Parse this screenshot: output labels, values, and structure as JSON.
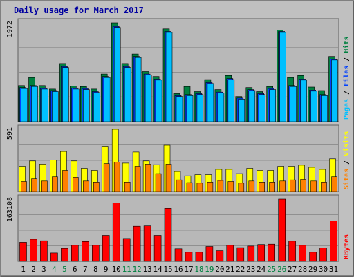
{
  "title": "Daily usage for March 2017",
  "colors": {
    "page_bg": "#c0c0c0",
    "panel_bg": "#b8b8b8",
    "title_text": "#0000a0",
    "pages": "#00c0ff",
    "hits": "#008040",
    "files": "#0040ff",
    "visits": "#ffff00",
    "sites": "#ff8000",
    "kbytes": "#ff0000",
    "weekend_day": "#008040",
    "weekday_day": "#000000"
  },
  "chart_data": [
    {
      "type": "bar",
      "panel": "top",
      "max_label": "1972",
      "ylim": [
        0,
        1972
      ],
      "legend": [
        {
          "text": "Pages",
          "color": "#00c0ff"
        },
        {
          "text": "Files",
          "color": "#0040ff"
        },
        {
          "text": "Hits",
          "color": "#008040"
        }
      ],
      "categories": [
        "1",
        "2",
        "3",
        "4",
        "5",
        "6",
        "7",
        "8",
        "9",
        "10",
        "11",
        "12",
        "13",
        "14",
        "15",
        "16",
        "17",
        "18",
        "19",
        "20",
        "21",
        "22",
        "23",
        "24",
        "25",
        "26",
        "27",
        "28",
        "29",
        "30",
        "31"
      ],
      "series": [
        {
          "name": "Hits",
          "color": "#008040",
          "values": [
            720,
            880,
            720,
            650,
            1160,
            710,
            700,
            650,
            950,
            1972,
            1160,
            1350,
            1000,
            900,
            1850,
            560,
            700,
            600,
            840,
            640,
            920,
            500,
            680,
            600,
            700,
            1830,
            880,
            920,
            690,
            620,
            1300
          ]
        },
        {
          "name": "Files",
          "color": "#0040ff",
          "values": [
            680,
            720,
            670,
            620,
            1100,
            670,
            660,
            600,
            900,
            1900,
            1100,
            1300,
            950,
            850,
            1800,
            520,
            540,
            560,
            780,
            590,
            860,
            470,
            640,
            560,
            660,
            1800,
            720,
            850,
            630,
            540,
            1250
          ]
        },
        {
          "name": "Pages",
          "color": "#00c0ff",
          "values": [
            660,
            700,
            650,
            600,
            1080,
            650,
            640,
            580,
            880,
            1880,
            1080,
            1280,
            930,
            830,
            1780,
            500,
            520,
            540,
            760,
            570,
            840,
            450,
            620,
            540,
            640,
            1780,
            700,
            830,
            610,
            520,
            1230
          ]
        }
      ]
    },
    {
      "type": "bar",
      "panel": "middle",
      "max_label": "591",
      "ylim": [
        0,
        591
      ],
      "legend": [
        {
          "text": "Sites",
          "color": "#ff8000"
        },
        {
          "text": "Visits",
          "color": "#ffff00"
        }
      ],
      "categories": [
        "1",
        "2",
        "3",
        "4",
        "5",
        "6",
        "7",
        "8",
        "9",
        "10",
        "11",
        "12",
        "13",
        "14",
        "15",
        "16",
        "17",
        "18",
        "19",
        "20",
        "21",
        "22",
        "23",
        "24",
        "25",
        "26",
        "27",
        "28",
        "29",
        "30",
        "31"
      ],
      "series": [
        {
          "name": "Visits",
          "color": "#ffff00",
          "values": [
            240,
            290,
            260,
            300,
            380,
            290,
            220,
            200,
            430,
            591,
            270,
            375,
            290,
            255,
            440,
            190,
            150,
            160,
            160,
            210,
            210,
            170,
            220,
            200,
            200,
            240,
            240,
            250,
            230,
            210,
            310
          ]
        },
        {
          "name": "Sites",
          "color": "#ff8000",
          "values": [
            95,
            120,
            100,
            140,
            200,
            135,
            100,
            90,
            265,
            280,
            90,
            240,
            260,
            170,
            260,
            110,
            85,
            80,
            90,
            105,
            95,
            80,
            100,
            90,
            90,
            100,
            110,
            115,
            100,
            90,
            140
          ]
        }
      ]
    },
    {
      "type": "bar",
      "panel": "bottom",
      "max_label": "163108",
      "ylim": [
        0,
        163108
      ],
      "legend": [
        {
          "text": "KBytes",
          "color": "#ff0000"
        }
      ],
      "categories": [
        "1",
        "2",
        "3",
        "4",
        "5",
        "6",
        "7",
        "8",
        "9",
        "10",
        "11",
        "12",
        "13",
        "14",
        "15",
        "16",
        "17",
        "18",
        "19",
        "20",
        "21",
        "22",
        "23",
        "24",
        "25",
        "26",
        "27",
        "28",
        "29",
        "30",
        "31"
      ],
      "series": [
        {
          "name": "KBytes",
          "color": "#ff0000",
          "values": [
            50000,
            58000,
            54000,
            22000,
            34000,
            42000,
            52000,
            42000,
            68000,
            153000,
            60000,
            92000,
            93000,
            68000,
            139000,
            33000,
            24000,
            24000,
            39000,
            28000,
            42000,
            36000,
            40000,
            44000,
            45000,
            163108,
            53000,
            42000,
            24000,
            35000,
            106000
          ]
        }
      ]
    }
  ],
  "x_axis": {
    "labels": [
      "1",
      "2",
      "3",
      "4",
      "5",
      "6",
      "7",
      "8",
      "9",
      "10",
      "11",
      "12",
      "13",
      "14",
      "15",
      "16",
      "17",
      "18",
      "19",
      "20",
      "21",
      "22",
      "23",
      "24",
      "25",
      "26",
      "27",
      "28",
      "29",
      "30",
      "31"
    ],
    "weekend": [
      false,
      false,
      false,
      true,
      true,
      false,
      false,
      false,
      false,
      false,
      true,
      true,
      false,
      false,
      false,
      false,
      false,
      true,
      true,
      false,
      false,
      false,
      false,
      false,
      true,
      true,
      false,
      false,
      false,
      false,
      false
    ]
  }
}
